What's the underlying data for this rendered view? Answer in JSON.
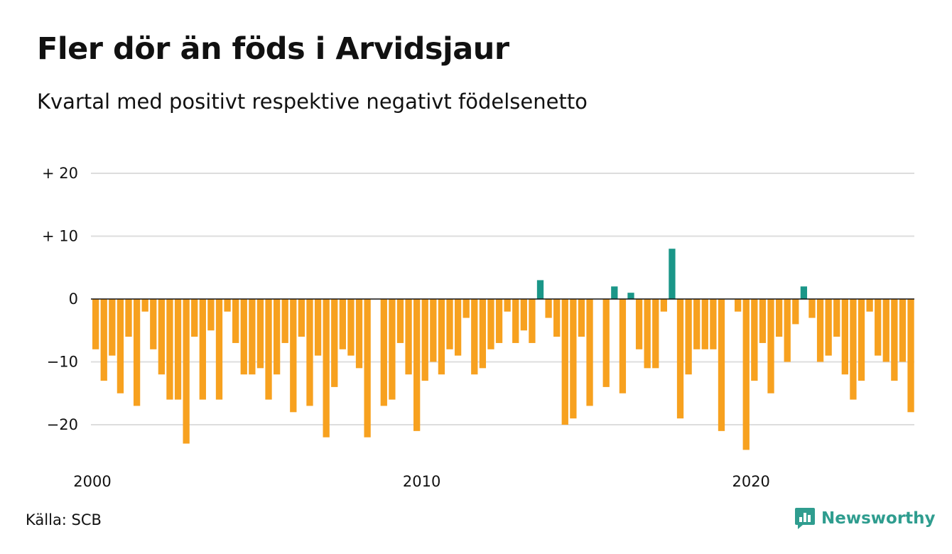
{
  "title": "Fler dör än föds i Arvidsjaur",
  "subtitle": "Kvartal med positivt respektive negativt födelsenetto",
  "source": "Källa: SCB",
  "brand": {
    "name": "Newsworthy",
    "icon": "newsworthy-logo-icon",
    "color": "#2f9d8f"
  },
  "colors": {
    "positive": "#1a9688",
    "negative": "#f7a11f",
    "grid": "#dddddd",
    "zero_line": "#111111"
  },
  "chart_data": {
    "type": "bar",
    "xlabel": "",
    "ylabel": "",
    "x_start": "2000 Q1",
    "frequency": "quarterly",
    "values": [
      -8,
      -13,
      -9,
      -15,
      -6,
      -17,
      -2,
      -8,
      -12,
      -16,
      -16,
      -23,
      -6,
      -16,
      -5,
      -16,
      -2,
      -7,
      -12,
      -12,
      -11,
      -16,
      -12,
      -7,
      -18,
      -6,
      -17,
      -9,
      -22,
      -14,
      -8,
      -9,
      -11,
      -22,
      0,
      -17,
      -16,
      -7,
      -12,
      -21,
      -13,
      -10,
      -12,
      -8,
      -9,
      -3,
      -12,
      -11,
      -8,
      -7,
      -2,
      -7,
      -5,
      -7,
      3,
      -3,
      -6,
      -20,
      -19,
      -6,
      -17,
      0,
      -14,
      2,
      -15,
      1,
      -8,
      -11,
      -11,
      -2,
      8,
      -19,
      -12,
      -8,
      -8,
      -8,
      -21,
      0,
      -2,
      -24,
      -13,
      -7,
      -15,
      -6,
      -10,
      -4,
      2,
      -3,
      -10,
      -9,
      -6,
      -12,
      -16,
      -13,
      -2,
      -9,
      -10,
      -13,
      -10,
      -18
    ],
    "ylim": [
      -26,
      22
    ],
    "y_ticks": [
      20,
      10,
      0,
      -10,
      -20
    ],
    "y_tick_labels": [
      "+ 20",
      "+ 10",
      "0",
      "−10",
      "−20"
    ],
    "x_ticks": [
      2000,
      2010,
      2020
    ],
    "x_tick_labels": [
      "2000",
      "2010",
      "2020"
    ],
    "grid": true,
    "legend": "none"
  }
}
